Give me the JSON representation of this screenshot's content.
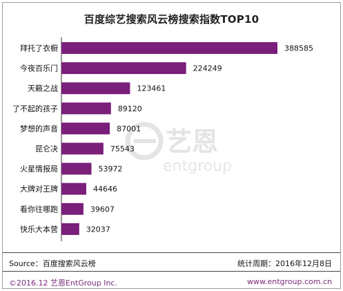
{
  "title": "百度综艺搜索风云榜搜索指数TOP10",
  "watermark": {
    "cn": "艺恩",
    "en": "entgroup"
  },
  "footer": {
    "source": "Source：百度搜索风云榜",
    "period": "统计周期：2016年12月8日",
    "copyright": "©2016.12  艺恩EntGroup Inc.",
    "website": "www.entgroup.com.cn"
  },
  "colors": {
    "bar": "#7a1f7a",
    "footer_text": "#7a2a7a",
    "watermark": "#e2e2e2"
  },
  "chart_data": {
    "type": "bar",
    "orientation": "horizontal",
    "title": "百度综艺搜索风云榜搜索指数TOP10",
    "categories": [
      "拜托了衣橱",
      "今夜百乐门",
      "天籁之战",
      "了不起的孩子",
      "梦想的声音",
      "昆仑决",
      "火星情报局",
      "大牌对王牌",
      "看你往哪跑",
      "快乐大本营"
    ],
    "values": [
      388585,
      224249,
      123461,
      89120,
      87001,
      75543,
      53972,
      44646,
      39607,
      32037
    ],
    "xlabel": "",
    "ylabel": "",
    "grid": false,
    "legend": "none"
  }
}
